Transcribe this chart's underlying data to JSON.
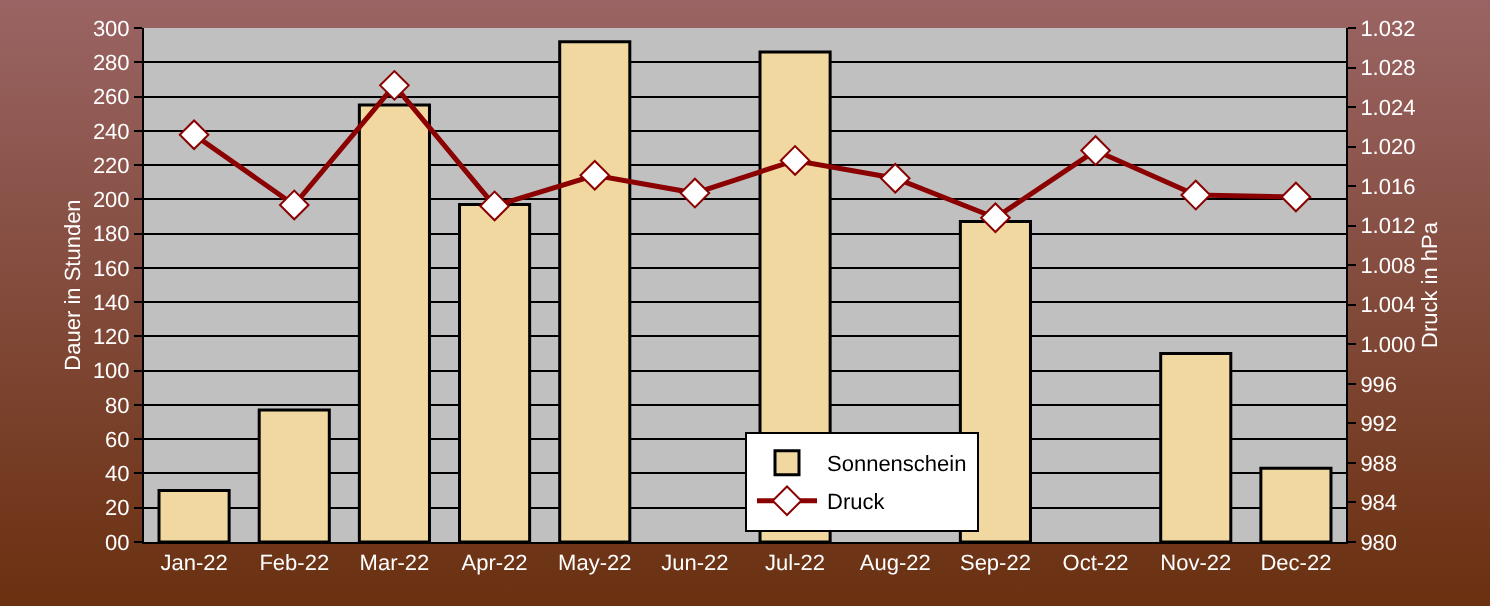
{
  "chart_data": {
    "type": "bar",
    "ylabel": "Dauer in Stunden",
    "y2label": "Druck in hPa",
    "categories": [
      "Jan-22",
      "Feb-22",
      "Mar-22",
      "Apr-22",
      "May-22",
      "Jun-22",
      "Jul-22",
      "Aug-22",
      "Sep-22",
      "Oct-22",
      "Nov-22",
      "Dec-22"
    ],
    "series": [
      {
        "name": "Sonnenschein",
        "color": "#f0d8a0",
        "values": [
          30,
          77,
          255,
          197,
          292,
          null,
          286,
          null,
          187,
          null,
          110,
          43
        ]
      },
      {
        "name": "Druck",
        "type": "line",
        "axis": "y2",
        "color": "#8b0000",
        "marker": "diamond",
        "values": [
          1021.2,
          1014.1,
          1026.2,
          1014.0,
          1017.1,
          1015.3,
          1018.6,
          1016.8,
          1012.8,
          1019.6,
          1015.1,
          1014.9
        ]
      }
    ],
    "ylim": [
      0,
      300
    ],
    "yticks": [
      {
        "value": 0,
        "label": "00"
      },
      20,
      40,
      60,
      80,
      100,
      120,
      140,
      160,
      180,
      200,
      220,
      240,
      260,
      280,
      300
    ],
    "y2lim": [
      980,
      1032
    ],
    "y2ticks": [
      980,
      984,
      988,
      992,
      996,
      {
        "value": 1000,
        "label": "1.000"
      },
      {
        "value": 1004,
        "label": "1.004"
      },
      {
        "value": 1008,
        "label": "1.008"
      },
      {
        "value": 1012,
        "label": "1.012"
      },
      {
        "value": 1016,
        "label": "1.016"
      },
      {
        "value": 1020,
        "label": "1.020"
      },
      {
        "value": 1024,
        "label": "1.024"
      },
      {
        "value": 1028,
        "label": "1.028"
      },
      {
        "value": 1032,
        "label": "1.032"
      }
    ],
    "grid": "y",
    "legend": "bottom"
  }
}
